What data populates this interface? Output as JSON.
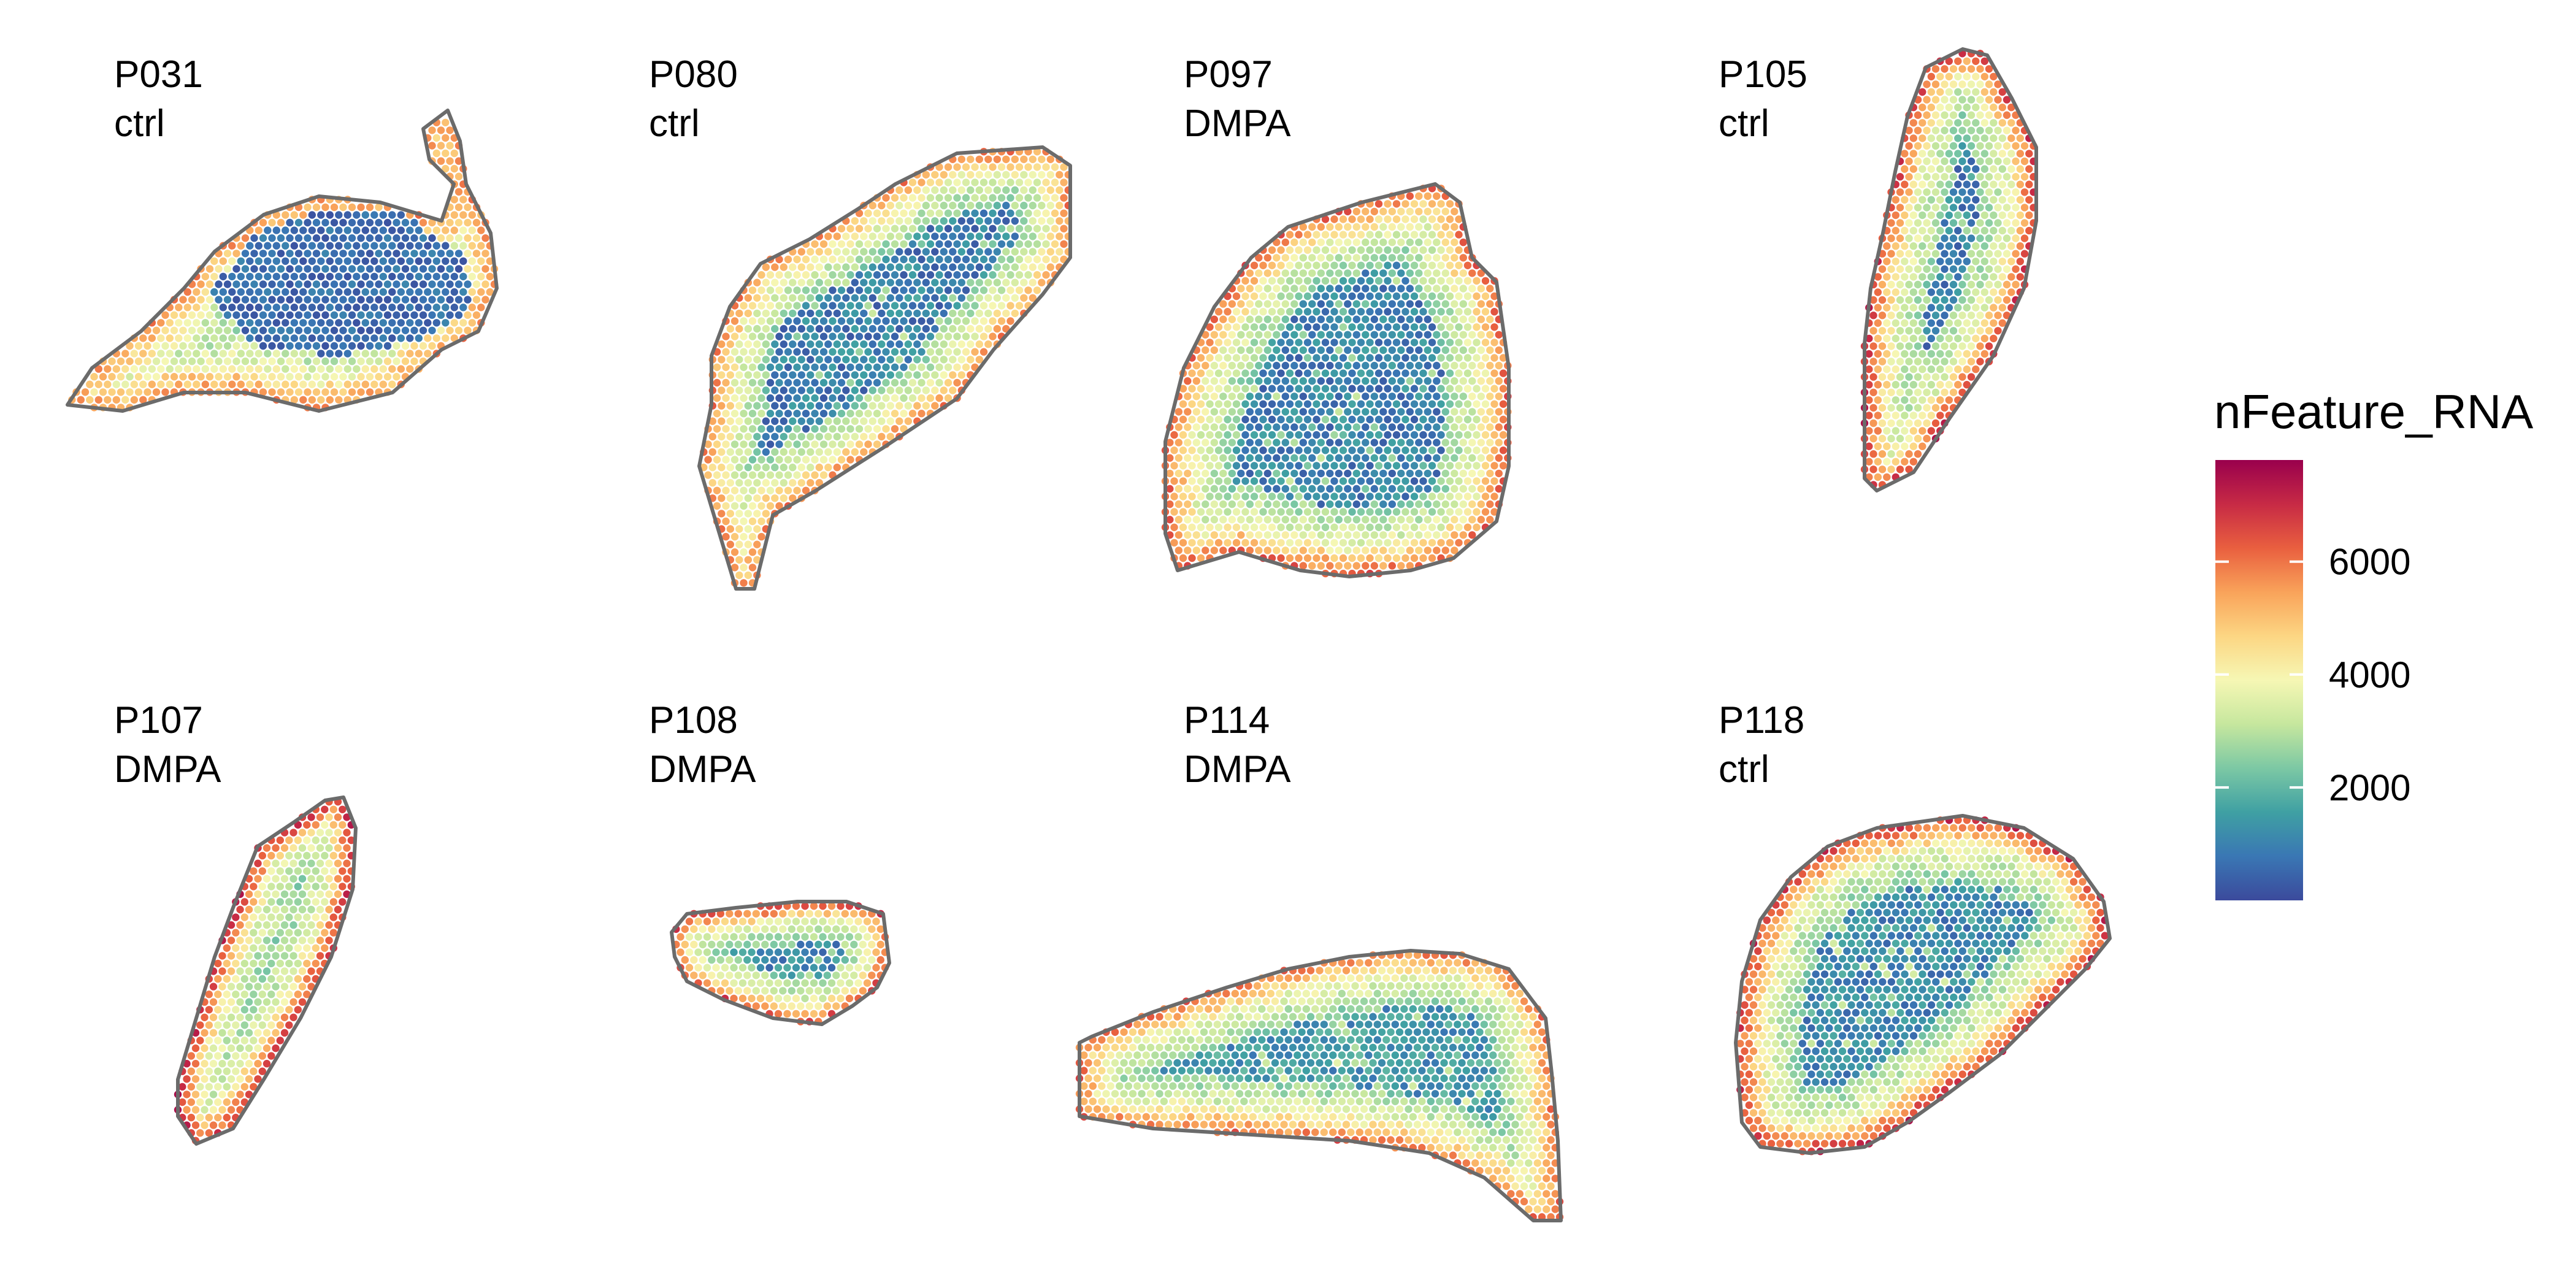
{
  "chart_data": {
    "type": "heatmap",
    "description_type": "spatial feature plot",
    "panels": [
      {
        "sample": "P031",
        "group": "ctrl"
      },
      {
        "sample": "P080",
        "group": "ctrl"
      },
      {
        "sample": "P097",
        "group": "DMPA"
      },
      {
        "sample": "P105",
        "group": "ctrl"
      },
      {
        "sample": "P107",
        "group": "DMPA"
      },
      {
        "sample": "P108",
        "group": "DMPA"
      },
      {
        "sample": "P114",
        "group": "DMPA"
      },
      {
        "sample": "P118",
        "group": "ctrl"
      }
    ],
    "legend": {
      "title": "nFeature_RNA",
      "ticks": [
        "2000",
        "4000",
        "6000"
      ],
      "tick_values": [
        2000,
        4000,
        6000
      ],
      "range": [
        0,
        7800
      ],
      "palette": [
        "#3B4A9C",
        "#3A77B4",
        "#3FA0A3",
        "#7CC8A4",
        "#C6E79E",
        "#F6F7B4",
        "#FCD683",
        "#F9A35A",
        "#E95F3F",
        "#C72A45",
        "#99004D"
      ]
    },
    "outline_color": "#6b6b6b"
  }
}
